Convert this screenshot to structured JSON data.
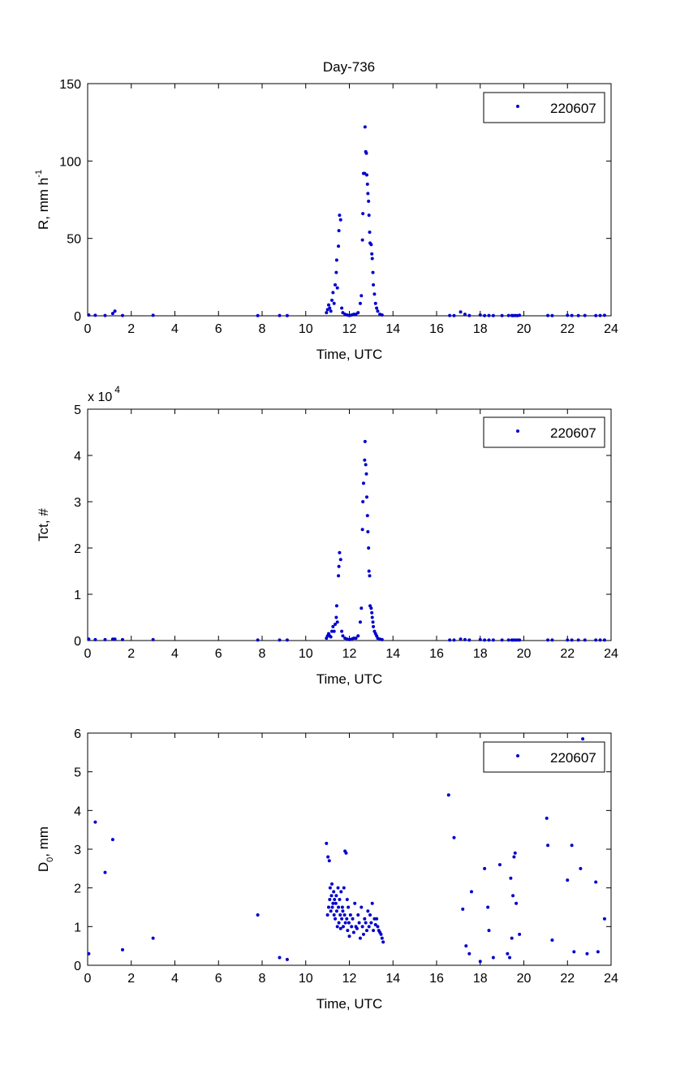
{
  "figure_title": "Day-736",
  "colors": {
    "marker": "#0000cc",
    "axes": "#000000",
    "background": "#ffffff"
  },
  "chart_data": [
    {
      "type": "scatter",
      "title": "Day-736",
      "xlabel": "Time, UTC",
      "ylabel_main": "R, mm h",
      "ylabel_sup": "-1",
      "xlim": [
        0,
        24
      ],
      "ylim": [
        0,
        150
      ],
      "xticks": [
        "0",
        "2",
        "4",
        "6",
        "8",
        "10",
        "12",
        "14",
        "16",
        "18",
        "20",
        "22",
        "24"
      ],
      "yticks": [
        "0",
        "50",
        "100",
        "150"
      ],
      "legend_placement": "top-right",
      "series": [
        {
          "name": "220607",
          "x": [
            0.05,
            0.35,
            0.8,
            1.15,
            1.25,
            1.6,
            3.0,
            7.8,
            8.8,
            9.15,
            10.95,
            11.0,
            11.05,
            11.1,
            11.15,
            11.2,
            11.25,
            11.3,
            11.35,
            11.4,
            11.42,
            11.45,
            11.5,
            11.52,
            11.55,
            11.6,
            11.65,
            11.7,
            11.8,
            11.9,
            12.0,
            12.1,
            12.2,
            12.3,
            12.4,
            12.5,
            12.55,
            12.6,
            12.62,
            12.65,
            12.7,
            12.72,
            12.75,
            12.78,
            12.8,
            12.83,
            12.85,
            12.88,
            12.9,
            12.93,
            12.95,
            13.0,
            13.03,
            13.05,
            13.08,
            13.1,
            13.15,
            13.2,
            13.25,
            13.3,
            13.4,
            13.5,
            16.6,
            16.8,
            17.1,
            17.3,
            17.5,
            18.0,
            18.2,
            18.4,
            18.6,
            19.0,
            19.3,
            19.45,
            19.5,
            19.6,
            19.7,
            19.8,
            21.1,
            21.3,
            22.0,
            22.2,
            22.5,
            22.8,
            23.3,
            23.5,
            23.7
          ],
          "y": [
            0.5,
            0.3,
            0.2,
            1.5,
            3.0,
            0.2,
            0.3,
            0.1,
            0.2,
            0.1,
            2,
            4,
            7,
            5,
            3,
            10,
            15,
            8,
            20,
            28,
            36,
            18,
            45,
            55,
            65,
            62,
            5,
            2,
            1,
            0.5,
            0.2,
            0.5,
            1,
            1,
            2,
            8,
            13,
            49,
            66,
            92,
            92,
            122,
            106,
            105,
            91,
            85,
            79,
            74,
            65,
            54,
            47,
            46,
            40,
            37,
            28,
            20,
            14,
            8,
            5,
            3,
            1,
            0.5,
            0.2,
            0.1,
            2.5,
            1,
            0.2,
            0.5,
            0.1,
            0.2,
            0.1,
            0.1,
            0.2,
            0.2,
            0.1,
            0.2,
            0.1,
            0.3,
            0.2,
            0.1,
            0.3,
            0.2,
            0.1,
            0.2,
            0.1,
            0.2,
            0.3
          ]
        }
      ]
    },
    {
      "type": "scatter",
      "xlabel": "Time, UTC",
      "ylabel_main": "Tct, #",
      "scale_note": "x 10",
      "scale_exp": "4",
      "xlim": [
        0,
        24
      ],
      "ylim": [
        0,
        5
      ],
      "xticks": [
        "0",
        "2",
        "4",
        "6",
        "8",
        "10",
        "12",
        "14",
        "16",
        "18",
        "20",
        "22",
        "24"
      ],
      "yticks": [
        "0",
        "1",
        "2",
        "3",
        "4",
        "5"
      ],
      "legend_placement": "top-right",
      "series": [
        {
          "name": "220607",
          "x": [
            0.05,
            0.35,
            0.8,
            1.15,
            1.25,
            1.6,
            3.0,
            7.8,
            8.8,
            9.15,
            10.95,
            11.0,
            11.05,
            11.1,
            11.15,
            11.2,
            11.25,
            11.3,
            11.35,
            11.4,
            11.42,
            11.45,
            11.5,
            11.52,
            11.55,
            11.6,
            11.65,
            11.7,
            11.8,
            11.9,
            12.0,
            12.1,
            12.2,
            12.3,
            12.4,
            12.5,
            12.55,
            12.6,
            12.62,
            12.65,
            12.7,
            12.72,
            12.75,
            12.78,
            12.8,
            12.83,
            12.85,
            12.88,
            12.9,
            12.93,
            12.95,
            13.0,
            13.03,
            13.05,
            13.08,
            13.1,
            13.15,
            13.2,
            13.25,
            13.3,
            13.4,
            13.5,
            16.6,
            16.8,
            17.1,
            17.3,
            17.5,
            18.0,
            18.2,
            18.4,
            18.6,
            19.0,
            19.3,
            19.45,
            19.5,
            19.6,
            19.7,
            19.8,
            21.1,
            21.3,
            22.0,
            22.2,
            22.5,
            22.8,
            23.3,
            23.5,
            23.7
          ],
          "y": [
            0.03,
            0.02,
            0.02,
            0.03,
            0.03,
            0.02,
            0.02,
            0.01,
            0.01,
            0.01,
            0.05,
            0.1,
            0.15,
            0.1,
            0.08,
            0.2,
            0.3,
            0.2,
            0.35,
            0.5,
            0.75,
            0.4,
            1.4,
            1.6,
            1.9,
            1.75,
            0.2,
            0.1,
            0.05,
            0.03,
            0.02,
            0.03,
            0.05,
            0.05,
            0.1,
            0.4,
            0.7,
            2.4,
            3.0,
            3.4,
            3.9,
            4.3,
            3.8,
            3.6,
            3.1,
            2.7,
            2.35,
            2.0,
            1.5,
            1.4,
            0.75,
            0.7,
            0.6,
            0.5,
            0.4,
            0.3,
            0.2,
            0.15,
            0.1,
            0.05,
            0.03,
            0.02,
            0.01,
            0.01,
            0.03,
            0.02,
            0.01,
            0.02,
            0.01,
            0.01,
            0.01,
            0.01,
            0.01,
            0.01,
            0.01,
            0.01,
            0.01,
            0.01,
            0.01,
            0.01,
            0.01,
            0.01,
            0.01,
            0.01,
            0.01,
            0.01,
            0.01
          ]
        }
      ]
    },
    {
      "type": "scatter",
      "xlabel": "Time, UTC",
      "ylabel_main": "D",
      "ylabel_sub": "0",
      "ylabel_tail": ", mm",
      "xlim": [
        0,
        24
      ],
      "ylim": [
        0,
        6
      ],
      "xticks": [
        "0",
        "2",
        "4",
        "6",
        "8",
        "10",
        "12",
        "14",
        "16",
        "18",
        "20",
        "22",
        "24"
      ],
      "yticks": [
        "0",
        "1",
        "2",
        "3",
        "4",
        "5",
        "6"
      ],
      "legend_placement": "top-right",
      "series": [
        {
          "name": "220607",
          "x": [
            0.05,
            0.35,
            0.8,
            1.15,
            1.6,
            3.0,
            7.8,
            8.8,
            9.15,
            10.95,
            11.0,
            11.02,
            11.05,
            11.08,
            11.1,
            11.12,
            11.15,
            11.18,
            11.2,
            11.22,
            11.25,
            11.28,
            11.3,
            11.32,
            11.35,
            11.38,
            11.4,
            11.42,
            11.45,
            11.48,
            11.5,
            11.52,
            11.55,
            11.58,
            11.6,
            11.62,
            11.65,
            11.68,
            11.7,
            11.72,
            11.75,
            11.78,
            11.8,
            11.82,
            11.85,
            11.88,
            11.9,
            11.92,
            11.95,
            11.98,
            12.0,
            12.05,
            12.1,
            12.15,
            12.2,
            12.25,
            12.3,
            12.35,
            12.4,
            12.45,
            12.5,
            12.55,
            12.6,
            12.65,
            12.7,
            12.75,
            12.8,
            12.85,
            12.9,
            12.95,
            13.0,
            13.05,
            13.1,
            13.15,
            13.2,
            13.25,
            13.3,
            13.35,
            13.4,
            13.45,
            13.5,
            13.55,
            16.55,
            16.8,
            17.2,
            17.35,
            17.5,
            17.6,
            18.0,
            18.2,
            18.35,
            18.4,
            18.6,
            18.9,
            19.25,
            19.35,
            19.4,
            19.45,
            19.5,
            19.55,
            19.6,
            19.65,
            19.8,
            21.05,
            21.1,
            21.3,
            22.0,
            22.2,
            22.3,
            22.6,
            22.7,
            22.9,
            23.3,
            23.4,
            23.7
          ],
          "y": [
            0.3,
            3.7,
            2.4,
            3.25,
            0.4,
            0.7,
            1.3,
            0.2,
            0.15,
            3.15,
            1.3,
            2.8,
            1.5,
            2.7,
            1.7,
            2.0,
            1.4,
            1.8,
            2.1,
            1.5,
            1.6,
            1.9,
            1.3,
            1.7,
            1.2,
            1.6,
            1.8,
            1.4,
            1.0,
            2.0,
            1.5,
            1.1,
            1.7,
            1.3,
            0.95,
            1.9,
            1.2,
            1.5,
            1.4,
            1.0,
            2.0,
            1.3,
            2.95,
            1.1,
            2.9,
            1.2,
            1.7,
            0.9,
            1.5,
            1.1,
            0.75,
            1.3,
            1.0,
            1.2,
            0.85,
            1.6,
            1.0,
            0.95,
            1.3,
            1.1,
            0.7,
            1.5,
            1.0,
            0.8,
            1.2,
            1.1,
            0.9,
            1.4,
            1.0,
            1.3,
            1.1,
            1.6,
            0.9,
            1.2,
            1.05,
            1.2,
            1.0,
            0.9,
            0.85,
            0.8,
            0.7,
            0.6,
            4.4,
            3.3,
            1.45,
            0.5,
            0.3,
            1.9,
            0.1,
            2.5,
            1.5,
            0.9,
            0.2,
            2.6,
            0.3,
            0.2,
            2.25,
            0.7,
            1.8,
            2.8,
            2.9,
            1.6,
            0.8,
            3.8,
            3.1,
            0.65,
            2.2,
            3.1,
            0.35,
            2.5,
            5.85,
            0.3,
            2.15,
            0.35,
            1.2
          ]
        }
      ]
    }
  ]
}
